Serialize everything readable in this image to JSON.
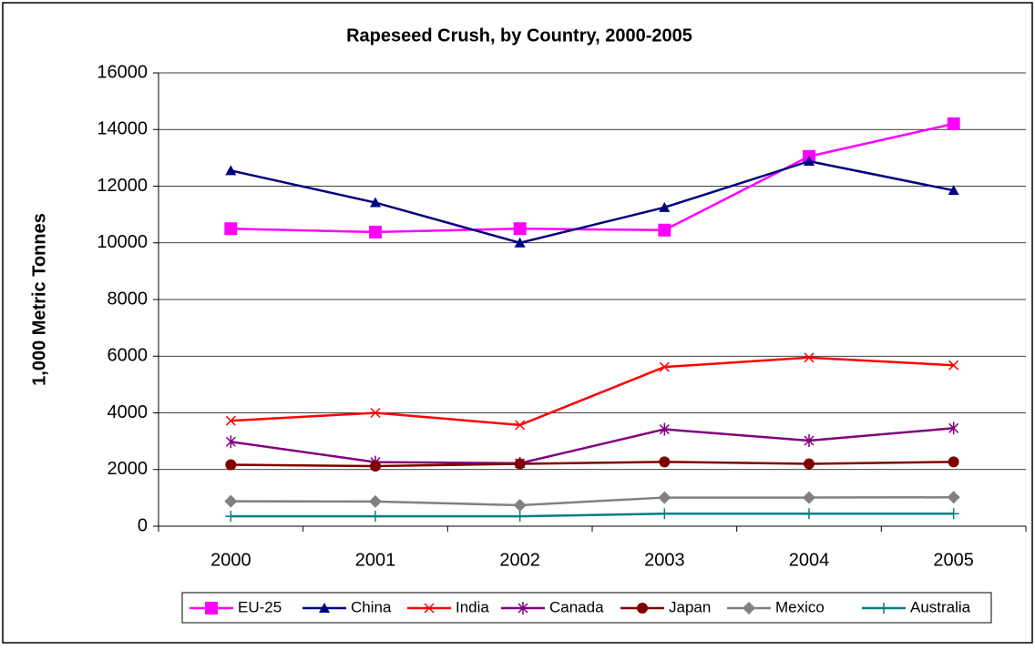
{
  "chart_data": {
    "type": "line",
    "title": "Rapeseed Crush, by Country, 2000-2005",
    "y_label": "1,000 Metric Tonnes",
    "categories": [
      "2000",
      "2001",
      "2002",
      "2003",
      "2004",
      "2005"
    ],
    "series": [
      {
        "name": "EU-25",
        "color": "#ff00ff",
        "marker": "square",
        "values": [
          10500,
          10380,
          10500,
          10450,
          13050,
          14200
        ]
      },
      {
        "name": "China",
        "color": "#000080",
        "marker": "triangle",
        "values": [
          12550,
          11420,
          10000,
          11250,
          12880,
          11850
        ]
      },
      {
        "name": "India",
        "color": "#ff0000",
        "marker": "x",
        "values": [
          3720,
          4000,
          3570,
          5620,
          5950,
          5680
        ]
      },
      {
        "name": "Canada",
        "color": "#800080",
        "marker": "asterisk",
        "values": [
          2980,
          2260,
          2220,
          3420,
          3020,
          3460
        ]
      },
      {
        "name": "Japan",
        "color": "#800000",
        "marker": "circle",
        "values": [
          2170,
          2120,
          2200,
          2270,
          2200,
          2270
        ]
      },
      {
        "name": "Mexico",
        "color": "#808080",
        "marker": "diamond",
        "values": [
          880,
          870,
          740,
          1010,
          1010,
          1020
        ]
      },
      {
        "name": "Australia",
        "color": "#008080",
        "marker": "plus",
        "values": [
          350,
          350,
          350,
          440,
          440,
          440
        ]
      }
    ],
    "ylim": [
      0,
      16000
    ],
    "yticks": [
      0,
      2000,
      4000,
      6000,
      8000,
      10000,
      12000,
      14000,
      16000
    ],
    "grid": true
  }
}
